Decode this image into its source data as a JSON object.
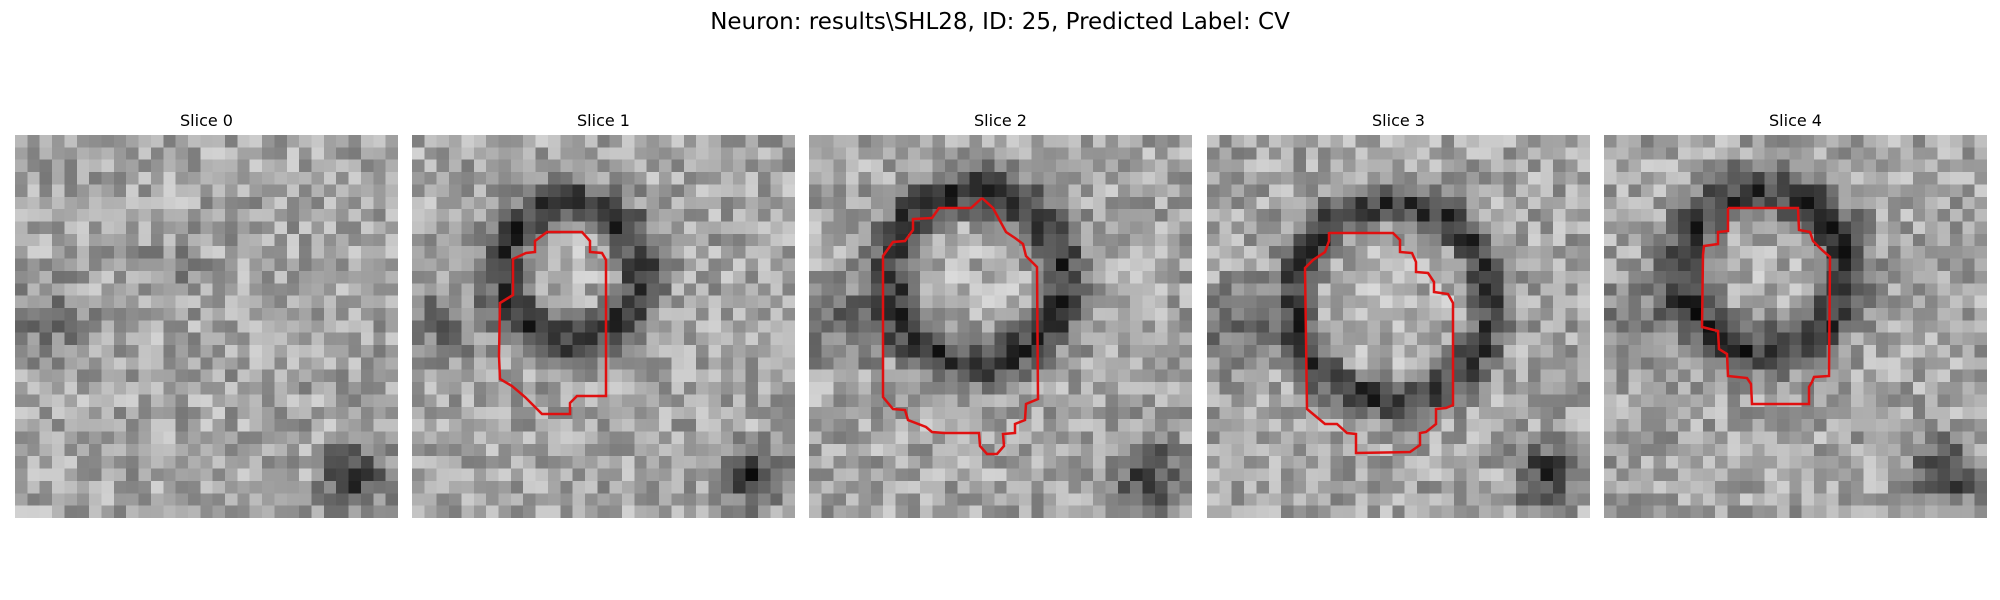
{
  "title": "Neuron: results\\SHL28, ID: 25, Predicted Label: CV",
  "colors": {
    "contour": "#e01010",
    "background": "#ffffff"
  },
  "panels": [
    {
      "label": "Slice 0",
      "has_contour": false
    },
    {
      "label": "Slice 1",
      "has_contour": true
    },
    {
      "label": "Slice 2",
      "has_contour": true
    },
    {
      "label": "Slice 3",
      "has_contour": true
    },
    {
      "label": "Slice 4",
      "has_contour": true
    }
  ]
}
